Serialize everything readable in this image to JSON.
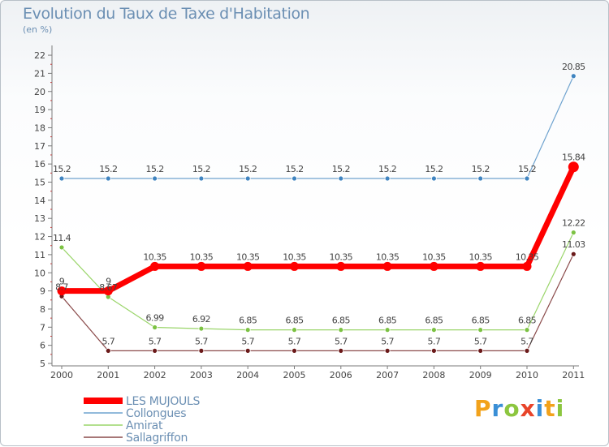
{
  "chart_data": {
    "type": "line",
    "title": "Evolution du Taux de Taxe d'Habitation",
    "subtitle": "(en %)",
    "xlabel": "",
    "ylabel": "(en %)",
    "ylim": [
      5,
      22
    ],
    "yticks": [
      "5",
      "6",
      "7",
      "8",
      "9",
      "10",
      "11",
      "12",
      "13",
      "14",
      "15",
      "16",
      "17",
      "18",
      "19",
      "20",
      "21",
      "22"
    ],
    "categories": [
      "2000",
      "2001",
      "2002",
      "2003",
      "2004",
      "2005",
      "2006",
      "2007",
      "2008",
      "2009",
      "2010",
      "2011"
    ],
    "series": [
      {
        "name": "Collongues",
        "color": "#6fa3cf",
        "marker": "#3f84c0",
        "width": 1.2,
        "values": [
          15.2,
          15.2,
          15.2,
          15.2,
          15.2,
          15.2,
          15.2,
          15.2,
          15.2,
          15.2,
          15.2,
          20.85
        ],
        "labels": [
          "15.2",
          "15.2",
          "15.2",
          "15.2",
          "15.2",
          "15.2",
          "15.2",
          "15.2",
          "15.2",
          "15.2",
          "15.2",
          "20.85"
        ]
      },
      {
        "name": "Amirat",
        "color": "#9ad56a",
        "marker": "#7cc243",
        "width": 1.2,
        "values": [
          11.4,
          8.67,
          6.99,
          6.92,
          6.85,
          6.85,
          6.85,
          6.85,
          6.85,
          6.85,
          6.85,
          12.22
        ],
        "labels": [
          "11.4",
          "8.67",
          "6.99",
          "6.92",
          "6.85",
          "6.85",
          "6.85",
          "6.85",
          "6.85",
          "6.85",
          "6.85",
          "12.22"
        ]
      },
      {
        "name": "Sallagriffon",
        "color": "#8a4a4a",
        "marker": "#6b1a1a",
        "width": 1.2,
        "values": [
          8.7,
          5.7,
          5.7,
          5.7,
          5.7,
          5.7,
          5.7,
          5.7,
          5.7,
          5.7,
          5.7,
          11.03
        ],
        "labels": [
          "8.7",
          "5.7",
          "5.7",
          "5.7",
          "5.7",
          "5.7",
          "5.7",
          "5.7",
          "5.7",
          "5.7",
          "5.7",
          "11.03"
        ]
      },
      {
        "name": "LES MUJOULS",
        "color": "#ff0000",
        "marker": "#ff0000",
        "width": 7,
        "values": [
          9,
          9,
          10.35,
          10.35,
          10.35,
          10.35,
          10.35,
          10.35,
          10.35,
          10.35,
          10.35,
          15.84
        ],
        "labels": [
          "9",
          "9",
          "10.35",
          "10.35",
          "10.35",
          "10.35",
          "10.35",
          "10.35",
          "10.35",
          "10.35",
          "10.35",
          "15.84"
        ]
      }
    ],
    "legend": [
      "LES MUJOULS",
      "Collongues",
      "Amirat",
      "Sallagriffon"
    ],
    "legend_position": "bottom-left",
    "grid": false
  },
  "brand": {
    "letters": [
      "P",
      "r",
      "o",
      "x",
      "i",
      "t",
      "i"
    ],
    "colors": [
      "#f2a21b",
      "#3a8fd6",
      "#8cc63f",
      "#e8442a",
      "#3a8fd6",
      "#f2a21b",
      "#8cc63f"
    ]
  }
}
